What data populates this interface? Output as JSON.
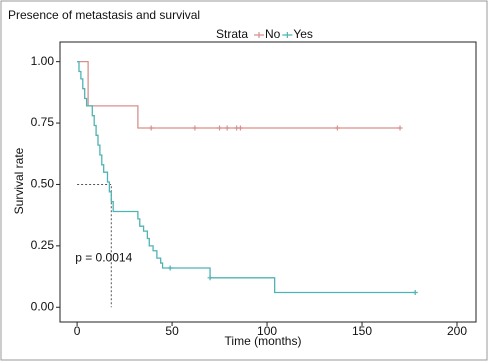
{
  "chart_data": {
    "type": "survival",
    "title": "Presence of metastasis and survival",
    "xlabel": "Time (months)",
    "ylabel": "Survival rate",
    "legend_title": "Strata",
    "annotation": "p = 0.0014",
    "xlim": [
      -9,
      210
    ],
    "ylim": [
      -0.06,
      1.08
    ],
    "xticks": [
      0,
      50,
      100,
      150,
      200
    ],
    "yticks": [
      {
        "value": 0,
        "label": "0.00"
      },
      {
        "value": 0.25,
        "label": "0.25"
      },
      {
        "value": 0.5,
        "label": "0.50"
      },
      {
        "value": 0.75,
        "label": "0.75"
      },
      {
        "value": 1,
        "label": "1.00"
      }
    ],
    "grid": false,
    "median_survival": {
      "x": 18,
      "y": 0.5
    },
    "series": [
      {
        "name": "No",
        "color": "#d9908c",
        "x": [
          0,
          5.8,
          32,
          170
        ],
        "values": [
          1,
          0.82,
          0.73,
          0.73
        ],
        "censored": {
          "x": [
            39,
            62,
            75,
            79,
            84,
            86,
            137,
            170
          ],
          "values": [
            0.73,
            0.73,
            0.73,
            0.73,
            0.73,
            0.73,
            0.73,
            0.73
          ]
        }
      },
      {
        "name": "Yes",
        "color": "#4fb3b3",
        "x": [
          0,
          1,
          2,
          3,
          4,
          5,
          8,
          9,
          10,
          11,
          12,
          13,
          14,
          16,
          17,
          18,
          19,
          32,
          33,
          35,
          37,
          38,
          40,
          42,
          44,
          45,
          70,
          104,
          178
        ],
        "values": [
          1,
          0.96,
          0.93,
          0.89,
          0.85,
          0.82,
          0.78,
          0.74,
          0.7,
          0.66,
          0.62,
          0.58,
          0.55,
          0.51,
          0.47,
          0.43,
          0.39,
          0.36,
          0.33,
          0.31,
          0.28,
          0.25,
          0.23,
          0.2,
          0.18,
          0.16,
          0.12,
          0.06,
          0.06
        ],
        "censored": {
          "x": [
            49,
            70,
            178
          ],
          "values": [
            0.16,
            0.12,
            0.06
          ]
        }
      }
    ]
  }
}
